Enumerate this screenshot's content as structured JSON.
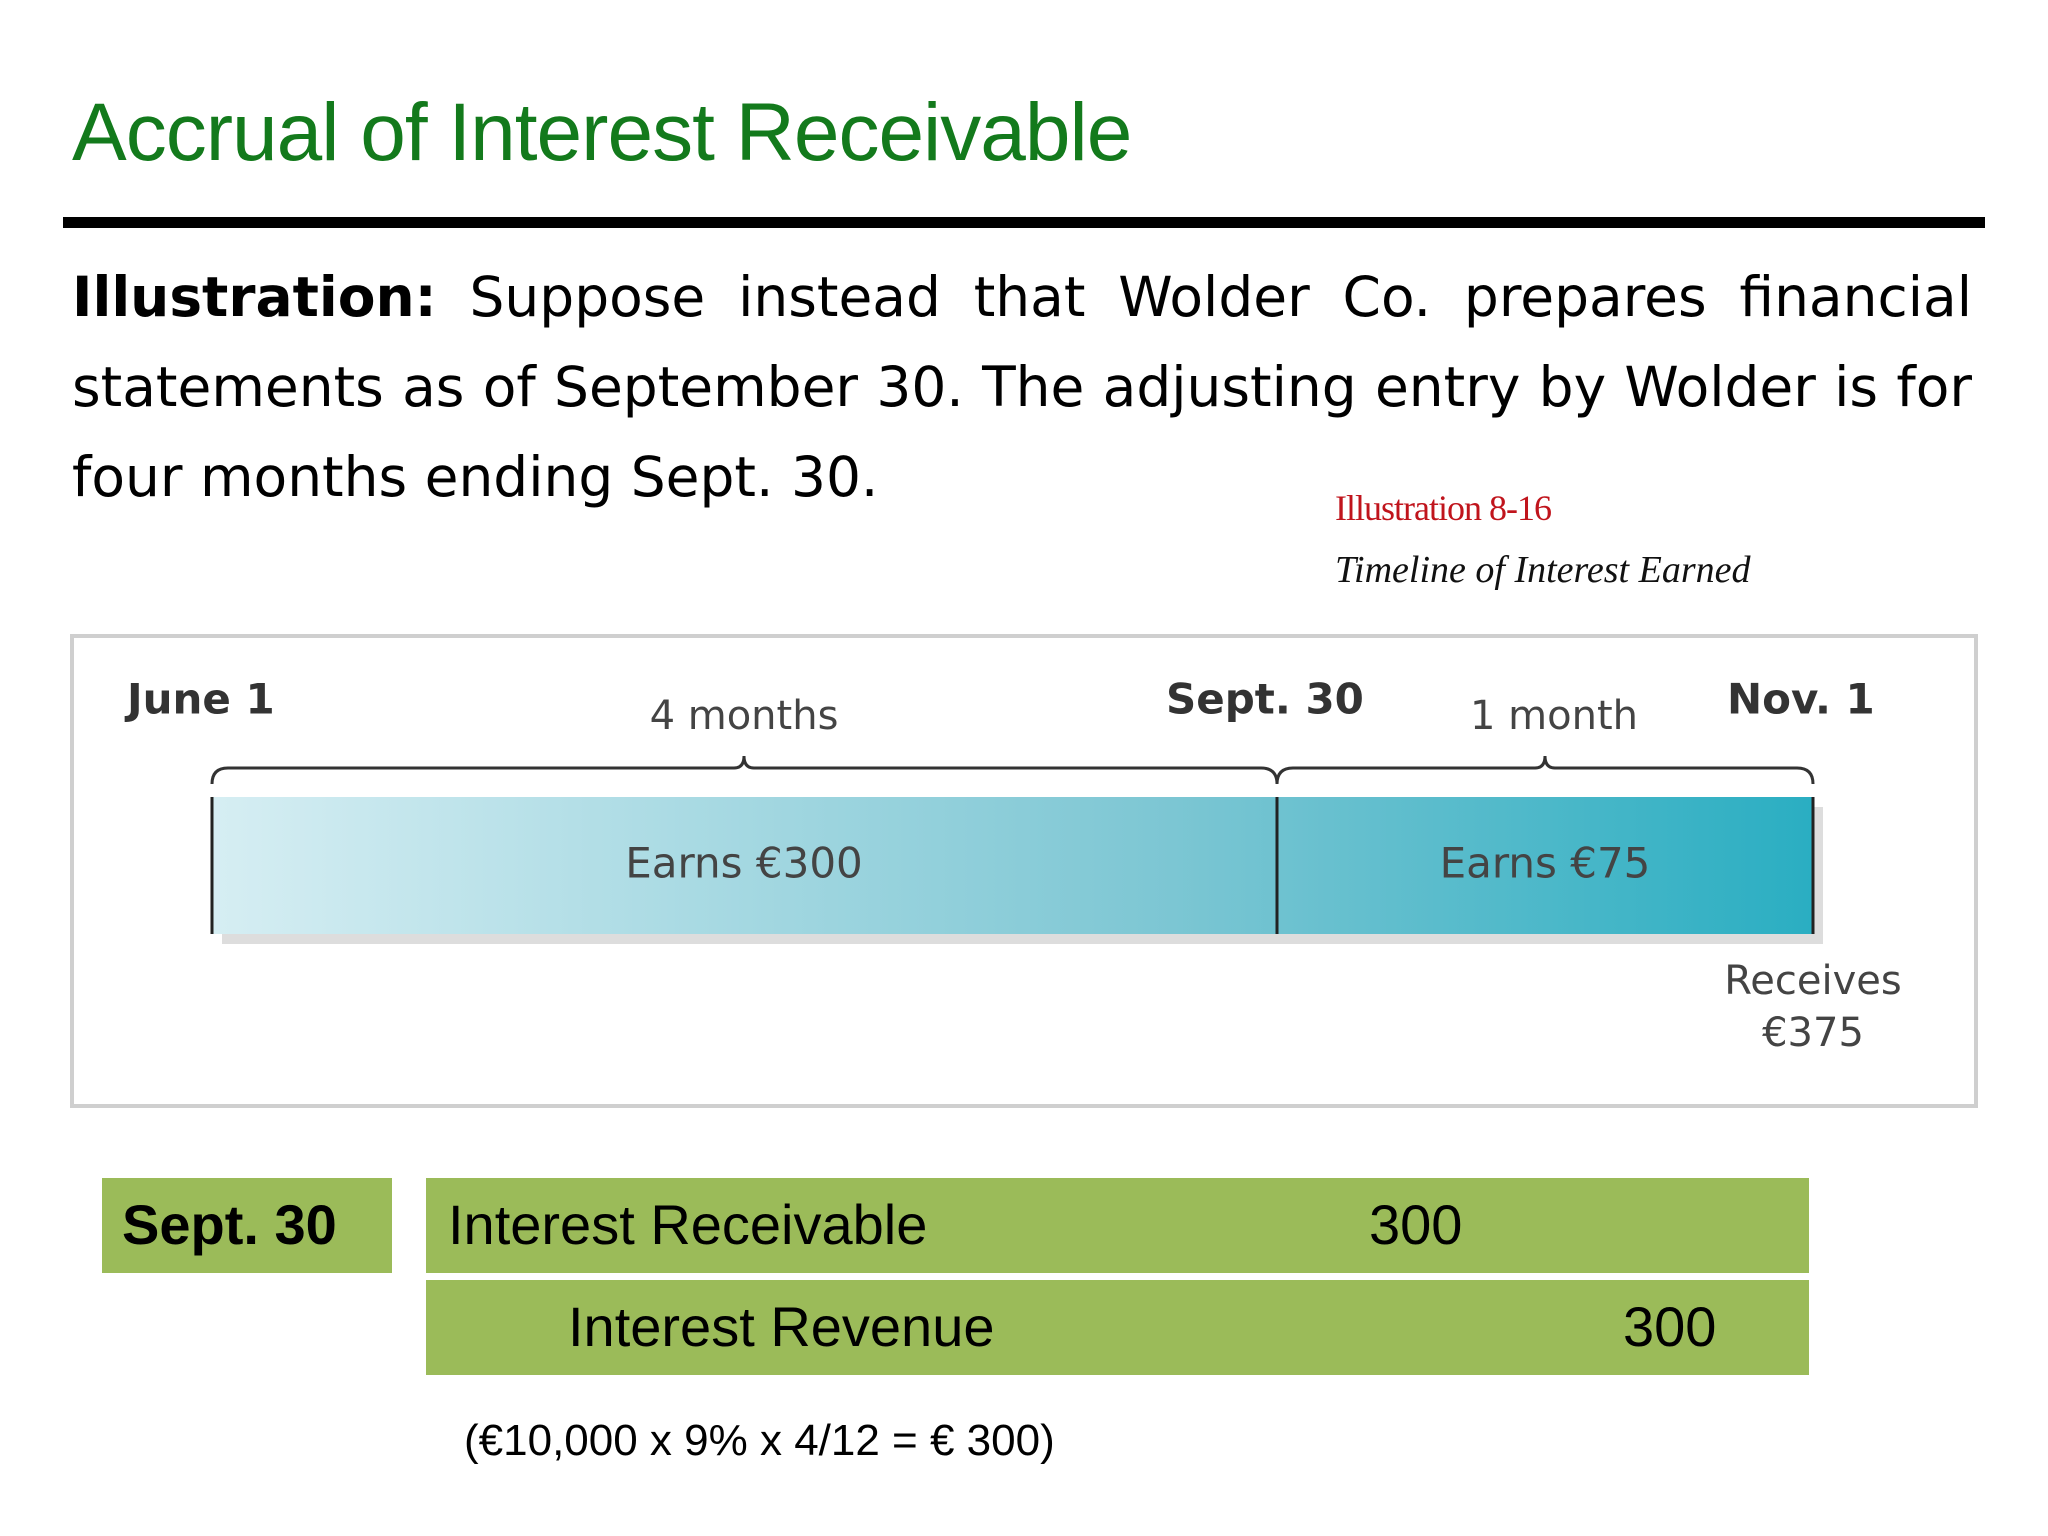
{
  "header": {
    "title": "Accrual of Interest Receivable"
  },
  "body": {
    "label": "Illustration:",
    "text": "Suppose instead that Wolder Co. prepares financial statements as of September 30. The adjusting entry by Wolder is for four months ending Sept. 30."
  },
  "figure": {
    "number": "Illustration 8-16",
    "caption": "Timeline of Interest Earned",
    "timeline": {
      "start": "June 1",
      "middle": "Sept. 30",
      "end": "Nov. 1",
      "span_1": "4 months",
      "span_2": "1 month",
      "segment_1": "Earns €300",
      "segment_2": "Earns €75",
      "receipt": [
        "Receives",
        "€375"
      ]
    }
  },
  "journal": {
    "date": "Sept. 30",
    "rows": [
      [
        "Interest Receivable",
        "300",
        ""
      ],
      [
        "Interest Revenue",
        "",
        "300"
      ]
    ],
    "note": "(€10,000 x 9% x 4/12 = € 300)"
  }
}
